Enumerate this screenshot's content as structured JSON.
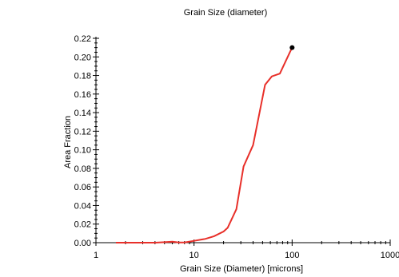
{
  "chart_data": {
    "type": "line",
    "title": "Grain Size (diameter)",
    "xlabel": "Grain Size (Diameter) [microns]",
    "ylabel": "Area Fraction",
    "x_scale": "log",
    "xlim": [
      1,
      1000
    ],
    "ylim": [
      0,
      0.22
    ],
    "x_ticks": [
      1,
      10,
      100,
      1000
    ],
    "x_tick_labels": [
      "1",
      "10",
      "100",
      "1000"
    ],
    "y_ticks": [
      0,
      0.02,
      0.04,
      0.06,
      0.08,
      0.1,
      0.12,
      0.14,
      0.16,
      0.18,
      0.2,
      0.22
    ],
    "y_tick_labels": [
      "0.00",
      "0.02",
      "0.04",
      "0.06",
      "0.08",
      "0.10",
      "0.12",
      "0.14",
      "0.16",
      "0.18",
      "0.20",
      "0.22"
    ],
    "grid": false,
    "series_color": "#e8302a",
    "marker_color": "#000000",
    "series": [
      {
        "x": [
          1.6,
          2,
          3,
          4,
          5,
          6,
          7,
          8,
          10,
          13,
          16,
          20,
          22,
          27,
          32,
          40,
          53,
          62,
          75,
          100
        ],
        "values": [
          0,
          0,
          0,
          0,
          0.0005,
          0.001,
          0.0002,
          0.0003,
          0.002,
          0.004,
          0.007,
          0.012,
          0.016,
          0.036,
          0.082,
          0.105,
          0.17,
          0.179,
          0.182,
          0.21
        ]
      }
    ],
    "highlight_point": {
      "x": 100,
      "y": 0.21
    }
  }
}
